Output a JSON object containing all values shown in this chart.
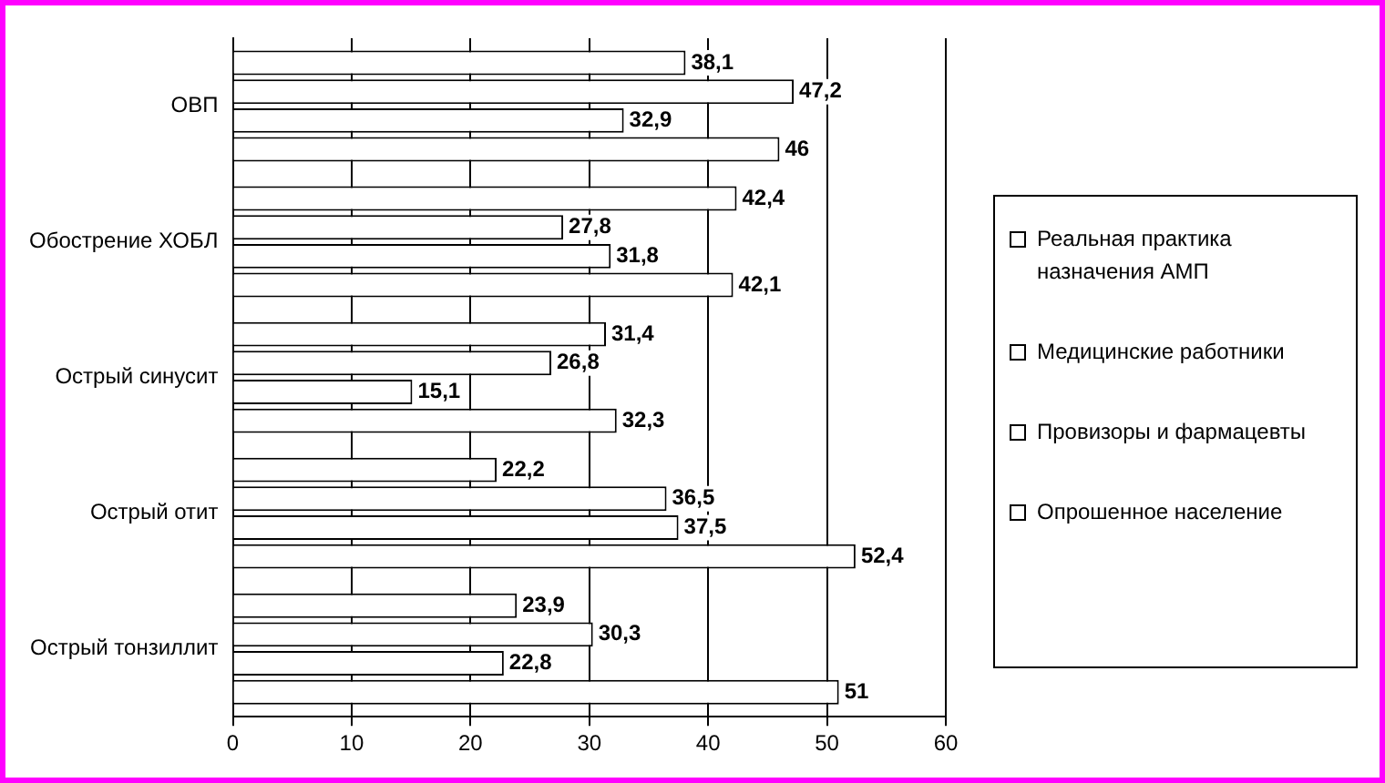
{
  "chart_data": {
    "type": "bar",
    "orientation": "horizontal",
    "categories": [
      "ОВП",
      "Обострение ХОБЛ",
      "Острый синусит",
      "Острый отит",
      "Острый тонзиллит"
    ],
    "series": [
      {
        "name": "Реальная практика назначения АМП",
        "color": "#ffffff",
        "values": [
          38.1,
          42.4,
          31.4,
          22.2,
          23.9
        ],
        "value_labels": [
          "38,1",
          "42,4",
          "31,4",
          "22,2",
          "23,9"
        ]
      },
      {
        "name": "Медицинские работники",
        "color": "#ffffff",
        "values": [
          47.2,
          27.8,
          26.8,
          36.5,
          30.3
        ],
        "value_labels": [
          "47,2",
          "27,8",
          "26,8",
          "36,5",
          "30,3"
        ]
      },
      {
        "name": "Провизоры и фармацевты",
        "color": "#ffffff",
        "values": [
          32.9,
          31.8,
          15.1,
          37.5,
          22.8
        ],
        "value_labels": [
          "32,9",
          "31,8",
          "15,1",
          "37,5",
          "22,8"
        ]
      },
      {
        "name": "Опрошенное население",
        "color": "#ffffff",
        "values": [
          46,
          42.1,
          32.3,
          52.4,
          51
        ],
        "value_labels": [
          "46",
          "42,1",
          "32,3",
          "52,4",
          "51"
        ]
      }
    ],
    "xlim": [
      0,
      60
    ],
    "xticks": [
      0,
      10,
      20,
      30,
      40,
      50,
      60
    ],
    "grid": "x",
    "legend": "right"
  }
}
